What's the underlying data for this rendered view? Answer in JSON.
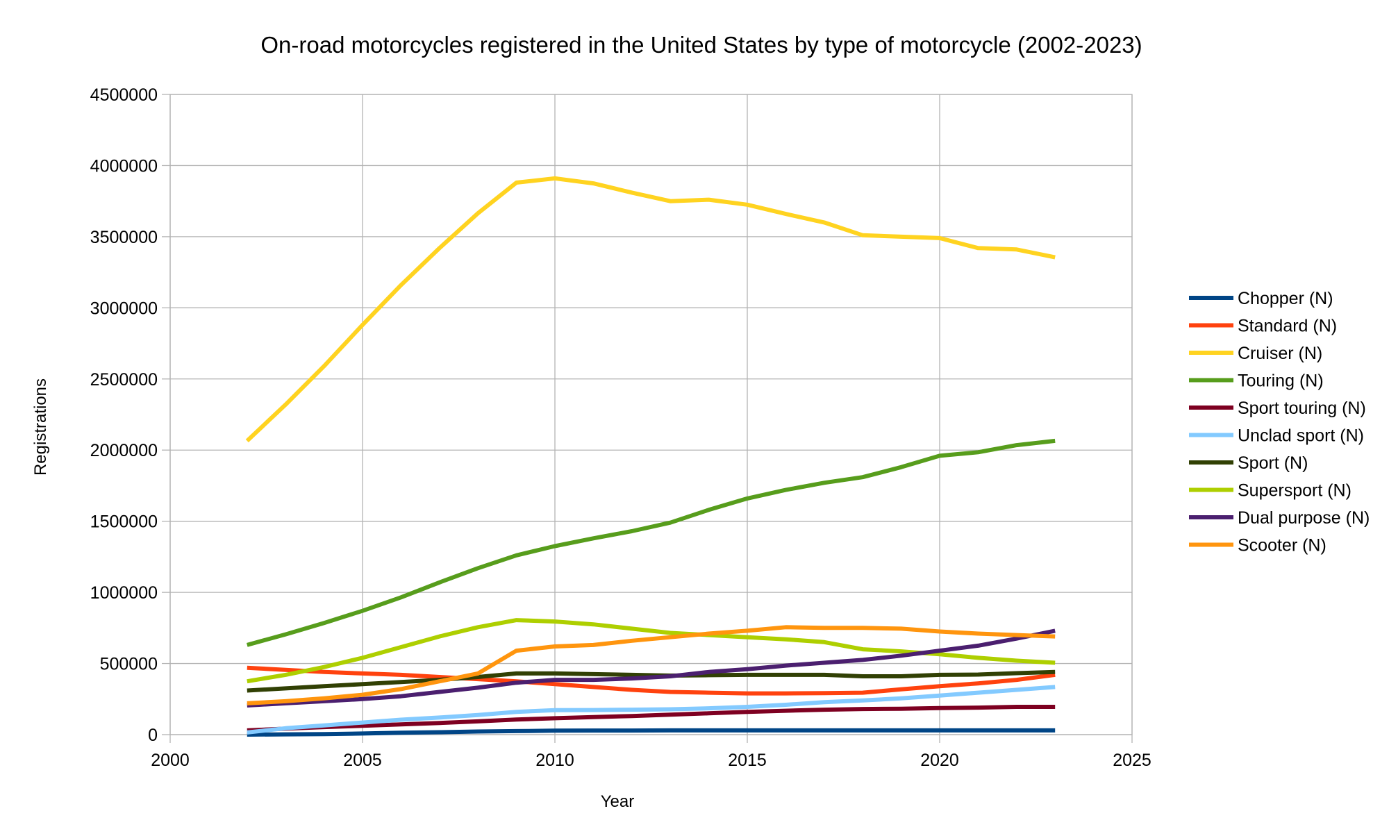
{
  "chart_data": {
    "type": "line",
    "title": "On-road motorcycles registered in the United States by type of motorcycle (2002-2023)",
    "xlabel": "Year",
    "ylabel": "Registrations",
    "xlim": [
      2000,
      2025
    ],
    "ylim": [
      0,
      4500000
    ],
    "x_ticks": [
      2000,
      2005,
      2010,
      2015,
      2020,
      2025
    ],
    "y_ticks": [
      0,
      500000,
      1000000,
      1500000,
      2000000,
      2500000,
      3000000,
      3500000,
      4000000,
      4500000
    ],
    "x_tick_labels": [
      "2000",
      "2005",
      "2010",
      "2015",
      "2020",
      "2025"
    ],
    "y_tick_labels": [
      "0",
      "500000",
      "1000000",
      "1500000",
      "2000000",
      "2500000",
      "3000000",
      "3500000",
      "4000000",
      "4500000"
    ],
    "grid": true,
    "legend_position": "right",
    "x": [
      2002,
      2003,
      2004,
      2005,
      2006,
      2007,
      2008,
      2009,
      2010,
      2011,
      2012,
      2013,
      2014,
      2015,
      2016,
      2017,
      2018,
      2019,
      2020,
      2021,
      2022,
      2023
    ],
    "series": [
      {
        "name": "Chopper (N)",
        "color": "#004586",
        "values": [
          0,
          2000,
          4000,
          8000,
          13000,
          17000,
          22000,
          25000,
          28000,
          29000,
          29000,
          30000,
          30000,
          30000,
          30000,
          30000,
          30000,
          30000,
          30000,
          30000,
          30000,
          30000
        ]
      },
      {
        "name": "Standard (N)",
        "color": "#ff420e",
        "values": [
          470000,
          455000,
          440000,
          430000,
          420000,
          405000,
          390000,
          375000,
          355000,
          335000,
          315000,
          300000,
          295000,
          290000,
          290000,
          292000,
          295000,
          318000,
          340000,
          360000,
          385000,
          420000
        ]
      },
      {
        "name": "Cruiser (N)",
        "color": "#ffd320",
        "values": [
          2065000,
          2320000,
          2590000,
          2880000,
          3160000,
          3420000,
          3665000,
          3880000,
          3910000,
          3875000,
          3810000,
          3750000,
          3760000,
          3725000,
          3660000,
          3600000,
          3510000,
          3500000,
          3490000,
          3420000,
          3410000,
          3355000
        ]
      },
      {
        "name": "Touring (N)",
        "color": "#579d1c",
        "values": [
          630000,
          705000,
          785000,
          870000,
          965000,
          1070000,
          1170000,
          1260000,
          1325000,
          1380000,
          1430000,
          1490000,
          1580000,
          1660000,
          1720000,
          1770000,
          1810000,
          1880000,
          1960000,
          1985000,
          2035000,
          2065000
        ]
      },
      {
        "name": "Sport touring (N)",
        "color": "#7e0021",
        "values": [
          30000,
          42000,
          53000,
          62000,
          72000,
          82000,
          93000,
          106000,
          115000,
          123000,
          131000,
          140000,
          150000,
          160000,
          168000,
          175000,
          180000,
          182000,
          187000,
          190000,
          195000,
          195000
        ]
      },
      {
        "name": "Unclad sport (N)",
        "color": "#83caff",
        "values": [
          15000,
          45000,
          65000,
          85000,
          105000,
          120000,
          138000,
          160000,
          172000,
          173000,
          175000,
          178000,
          185000,
          195000,
          210000,
          228000,
          240000,
          255000,
          275000,
          295000,
          315000,
          335000
        ]
      },
      {
        "name": "Sport (N)",
        "color": "#314004",
        "values": [
          310000,
          325000,
          340000,
          355000,
          370000,
          385000,
          405000,
          430000,
          430000,
          425000,
          420000,
          415000,
          418000,
          420000,
          420000,
          420000,
          410000,
          410000,
          420000,
          422000,
          432000,
          440000
        ]
      },
      {
        "name": "Supersport (N)",
        "color": "#aecf00",
        "values": [
          375000,
          420000,
          475000,
          540000,
          615000,
          690000,
          755000,
          805000,
          795000,
          775000,
          745000,
          715000,
          700000,
          685000,
          670000,
          650000,
          600000,
          585000,
          565000,
          540000,
          520000,
          505000
        ]
      },
      {
        "name": "Dual purpose (N)",
        "color": "#4b1f6f",
        "values": [
          205000,
          220000,
          235000,
          250000,
          270000,
          300000,
          330000,
          365000,
          385000,
          385000,
          395000,
          410000,
          440000,
          460000,
          485000,
          505000,
          525000,
          555000,
          590000,
          625000,
          675000,
          730000
        ]
      },
      {
        "name": "Scooter (N)",
        "color": "#ff950e",
        "values": [
          220000,
          235000,
          255000,
          280000,
          320000,
          375000,
          430000,
          590000,
          620000,
          630000,
          660000,
          685000,
          710000,
          730000,
          755000,
          750000,
          750000,
          745000,
          725000,
          710000,
          700000,
          690000
        ]
      }
    ]
  }
}
